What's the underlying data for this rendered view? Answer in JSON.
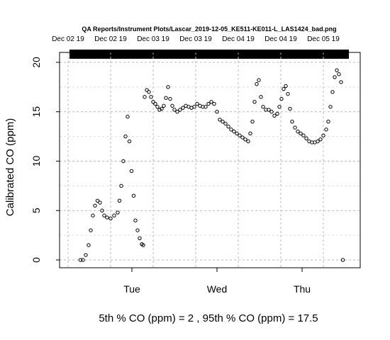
{
  "chart_data": {
    "type": "scatter",
    "title": "QA Reports/Instrument Plots/Lascar_2019-12-05_KE511-KE011-L_LAS1424_bad.png",
    "top_axis_labels": [
      "Dec 02 19",
      "Dec 02 19",
      "Dec 03 19",
      "Dec 03 19",
      "Dec 04 19",
      "Dec 04 19",
      "Dec 05 19"
    ],
    "x_tick_labels": [
      "Tue",
      "Wed",
      "Thu"
    ],
    "ylabel": "Calibrated CO (ppm)",
    "y_ticks": [
      0,
      5,
      10,
      15,
      20
    ],
    "ylim": [
      0,
      20
    ],
    "xlabel": "5th % CO (ppm) =  2 , 95th % CO (ppm)  =  17.5",
    "grid": true,
    "marker": "open-circle",
    "x_unit": "hours since Mon Dec 02 2019 00:00",
    "xlim": [
      4,
      88
    ],
    "x_ticks_hours": [
      24,
      48,
      72
    ],
    "top_label_hours": [
      6,
      18,
      30,
      42,
      54,
      66,
      78
    ],
    "series_points": [
      [
        9.5,
        0
      ],
      [
        10.2,
        0
      ],
      [
        11,
        0.5
      ],
      [
        11.8,
        1.5
      ],
      [
        12.4,
        3
      ],
      [
        13,
        4.5
      ],
      [
        13.6,
        5.5
      ],
      [
        14.3,
        6
      ],
      [
        15,
        5.8
      ],
      [
        15.6,
        5
      ],
      [
        16.2,
        4.5
      ],
      [
        17,
        4.3
      ],
      [
        18,
        4.2
      ],
      [
        19,
        4.5
      ],
      [
        20,
        4.8
      ],
      [
        20.5,
        6
      ],
      [
        21,
        7.5
      ],
      [
        21.6,
        10
      ],
      [
        22.2,
        12.5
      ],
      [
        22.8,
        14.5
      ],
      [
        23.3,
        12
      ],
      [
        23.9,
        9
      ],
      [
        24.5,
        6.5
      ],
      [
        25,
        4
      ],
      [
        25.6,
        3
      ],
      [
        26.2,
        2.2
      ],
      [
        26.8,
        1.6
      ],
      [
        27.2,
        1.5
      ],
      [
        27.6,
        16.5
      ],
      [
        28.2,
        17.2
      ],
      [
        28.8,
        17
      ],
      [
        29.4,
        16.5
      ],
      [
        30,
        16
      ],
      [
        30.6,
        15.8
      ],
      [
        31.2,
        15.5
      ],
      [
        31.8,
        15.2
      ],
      [
        32.4,
        15.3
      ],
      [
        33,
        15.6
      ],
      [
        33.6,
        16.4
      ],
      [
        34.2,
        17.5
      ],
      [
        34.8,
        16.3
      ],
      [
        35.4,
        15.6
      ],
      [
        36,
        15.2
      ],
      [
        36.8,
        15
      ],
      [
        37.6,
        15.2
      ],
      [
        38.4,
        15.4
      ],
      [
        39.2,
        15.6
      ],
      [
        40,
        15.5
      ],
      [
        40.8,
        15.4
      ],
      [
        41.6,
        15.5
      ],
      [
        42.4,
        15.8
      ],
      [
        43.2,
        15.6
      ],
      [
        44,
        15.5
      ],
      [
        44.8,
        15.5
      ],
      [
        45.6,
        15.8
      ],
      [
        46.4,
        16
      ],
      [
        47.2,
        15.8
      ],
      [
        48,
        15
      ],
      [
        48.8,
        14.2
      ],
      [
        49.6,
        14
      ],
      [
        50.4,
        13.8
      ],
      [
        51.2,
        13.5
      ],
      [
        52,
        13.2
      ],
      [
        52.8,
        13
      ],
      [
        53.6,
        12.8
      ],
      [
        54.4,
        12.6
      ],
      [
        55.2,
        12.4
      ],
      [
        56,
        12.2
      ],
      [
        56.8,
        12
      ],
      [
        57.4,
        12.8
      ],
      [
        58,
        14
      ],
      [
        58.6,
        16
      ],
      [
        59.2,
        17.8
      ],
      [
        59.8,
        18.2
      ],
      [
        60.4,
        16.5
      ],
      [
        61,
        15.5
      ],
      [
        61.8,
        15.2
      ],
      [
        62.6,
        15.2
      ],
      [
        63.4,
        15
      ],
      [
        64.2,
        14.6
      ],
      [
        65,
        14.8
      ],
      [
        65.6,
        15.5
      ],
      [
        66.2,
        16.3
      ],
      [
        66.8,
        17.3
      ],
      [
        67.4,
        17.6
      ],
      [
        68,
        16.8
      ],
      [
        68.6,
        15.3
      ],
      [
        69.2,
        14
      ],
      [
        70,
        13.4
      ],
      [
        70.8,
        13
      ],
      [
        71.6,
        12.8
      ],
      [
        72.4,
        12.6
      ],
      [
        73.2,
        12.3
      ],
      [
        74,
        12
      ],
      [
        74.8,
        11.9
      ],
      [
        75.6,
        11.9
      ],
      [
        76.4,
        12
      ],
      [
        77.2,
        12.2
      ],
      [
        78,
        12.6
      ],
      [
        78.8,
        13.2
      ],
      [
        79.4,
        14
      ],
      [
        80,
        15.5
      ],
      [
        80.6,
        17
      ],
      [
        81.2,
        18.5
      ],
      [
        81.8,
        19.2
      ],
      [
        82.4,
        18.8
      ],
      [
        83,
        18
      ],
      [
        83.5,
        0
      ]
    ]
  }
}
